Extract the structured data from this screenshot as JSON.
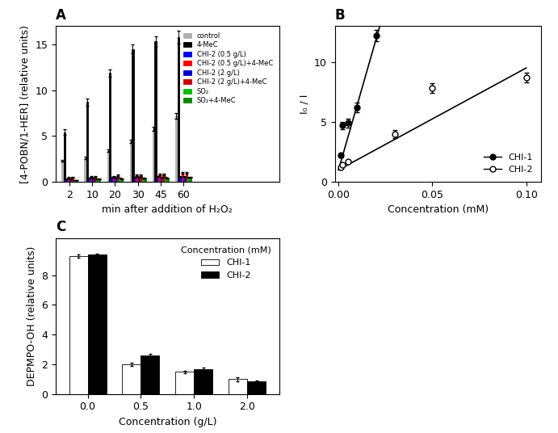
{
  "chart_data": [
    {
      "type": "bar",
      "title": "A",
      "xlabel": "min after addition of H₂O₂",
      "ylabel": "[4-POBN/1-HER] (relative units)",
      "categories": [
        "2",
        "10",
        "20",
        "30",
        "45",
        "60"
      ],
      "series": [
        {
          "name": "control",
          "color": "#b0b0b0",
          "values": [
            2.3,
            2.6,
            3.4,
            4.4,
            5.8,
            7.2
          ],
          "errors": [
            0.1,
            0.15,
            0.1,
            0.15,
            0.2,
            0.3
          ]
        },
        {
          "name": "4-MeC",
          "color": "#000000",
          "values": [
            5.4,
            8.7,
            11.9,
            14.5,
            15.3,
            15.8
          ],
          "errors": [
            0.3,
            0.4,
            0.4,
            0.5,
            0.6,
            0.7
          ]
        },
        {
          "name": "CHI-2 (0.5 g/L)",
          "color": "#0000ff",
          "values": [
            0.3,
            0.4,
            0.5,
            0.5,
            0.6,
            0.6
          ],
          "errors": [
            0.05,
            0.05,
            0.05,
            0.05,
            0.05,
            0.05
          ]
        },
        {
          "name": "CHI-2 (0.5 g/L)+4-MeC",
          "color": "#ff0000",
          "values": [
            0.5,
            0.6,
            0.6,
            0.7,
            0.8,
            1.0
          ],
          "errors": [
            0.05,
            0.05,
            0.05,
            0.08,
            0.08,
            0.1
          ]
        },
        {
          "name": "CHI-2 (2 g/L)",
          "color": "#0000cc",
          "values": [
            0.3,
            0.4,
            0.5,
            0.5,
            0.5,
            0.6
          ],
          "errors": [
            0.05,
            0.05,
            0.05,
            0.05,
            0.05,
            0.05
          ]
        },
        {
          "name": "CHI-2 (2 g/L)+4-MeC",
          "color": "#cc0000",
          "values": [
            0.5,
            0.6,
            0.7,
            0.7,
            0.8,
            1.0
          ],
          "errors": [
            0.05,
            0.06,
            0.06,
            0.08,
            0.08,
            0.1
          ]
        },
        {
          "name": "SO₂",
          "color": "#00bb00",
          "values": [
            0.2,
            0.3,
            0.4,
            0.4,
            0.5,
            0.5
          ],
          "errors": [
            0.03,
            0.03,
            0.03,
            0.03,
            0.03,
            0.03
          ]
        },
        {
          "name": "SO₂+4-MeC",
          "color": "#008800",
          "values": [
            0.2,
            0.3,
            0.3,
            0.4,
            0.4,
            0.5
          ],
          "errors": [
            0.03,
            0.03,
            0.03,
            0.03,
            0.03,
            0.03
          ]
        }
      ],
      "ylim": [
        0,
        17
      ],
      "yticks": [
        0,
        5,
        10,
        15
      ],
      "legend": "upper right"
    },
    {
      "type": "scatter",
      "title": "B",
      "xlabel": "Concentration (mM)",
      "ylabel": "I₀ / I",
      "series": [
        {
          "type": "line",
          "x": [
            0.0,
            0.022
          ],
          "values": [
            1.0,
            13.0
          ],
          "color": "#000000"
        },
        {
          "name": "CHI-1",
          "x": [
            0.001,
            0.002,
            0.005,
            0.01,
            0.02
          ],
          "values": [
            2.2,
            4.7,
            4.9,
            6.2,
            12.2
          ],
          "errors": [
            0.15,
            0.3,
            0.35,
            0.4,
            0.5
          ],
          "color": "#000000",
          "marker": "circle"
        },
        {
          "type": "line",
          "x": [
            0.0,
            0.1
          ],
          "values": [
            1.0,
            9.5
          ],
          "color": "#000000"
        },
        {
          "name": "CHI-2",
          "x": [
            0.001,
            0.002,
            0.005,
            0.03,
            0.05,
            0.1
          ],
          "values": [
            1.2,
            1.4,
            1.7,
            4.0,
            7.8,
            8.7
          ],
          "errors": [
            0.1,
            0.1,
            0.12,
            0.35,
            0.4,
            0.4
          ],
          "color": "#000000",
          "marker": "open circle"
        }
      ],
      "xlim": [
        -0.002,
        0.108
      ],
      "xticks": [
        {
          "value": 0.0,
          "label": "0.00"
        },
        {
          "value": 0.05,
          "label": "0.05"
        },
        {
          "value": 0.1,
          "label": "0.10"
        }
      ],
      "ylim": [
        0,
        13
      ],
      "yticks": [
        0,
        5,
        10
      ],
      "legend": "lower right"
    },
    {
      "type": "bar",
      "title": "C",
      "xlabel": "Concentration (g/L)",
      "ylabel": "DEPMPO-OH (relative units)",
      "categories": [
        "0.0",
        "0.5",
        "1.0",
        "2.0"
      ],
      "series": [
        {
          "name": "CHI-1",
          "color": "#ffffff",
          "values": [
            9.3,
            2.0,
            1.5,
            1.0
          ],
          "errors": [
            0.1,
            0.12,
            0.08,
            0.15
          ]
        },
        {
          "name": "CHI-2",
          "color": "#000000",
          "values": [
            9.4,
            2.6,
            1.7,
            0.85
          ],
          "errors": [
            0.08,
            0.1,
            0.08,
            0.07
          ]
        }
      ],
      "ylim": [
        0,
        10.5
      ],
      "yticks": [
        0,
        2,
        4,
        6,
        8
      ],
      "legend": "upper right",
      "legend_title": "Concentration (mM)"
    }
  ]
}
